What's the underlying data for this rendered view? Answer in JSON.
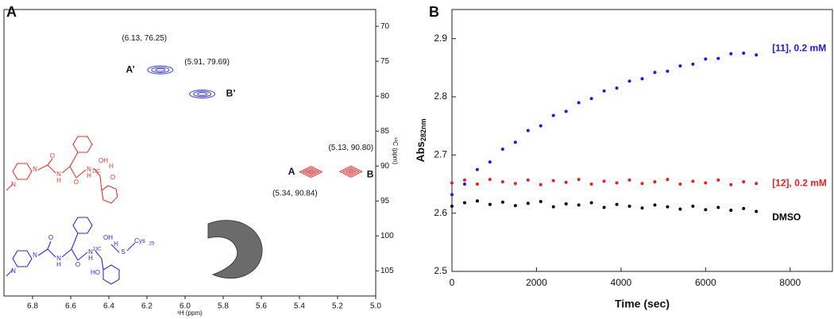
{
  "chart_data": [
    {
      "type": "contour",
      "panel_label": "A",
      "xlabel": "¹H (ppm)",
      "ylabel": "¹³C (ppm)",
      "xlim": [
        6.95,
        5.0
      ],
      "ylim": [
        67.6,
        108.6
      ],
      "xticks": [
        6.8,
        6.6,
        6.4,
        6.2,
        {
          "value": 6,
          "label": "6.0"
        },
        5.8,
        5.6,
        5.4,
        5.2,
        {
          "value": 5,
          "label": "5.0"
        }
      ],
      "yticks": [
        70,
        75,
        80,
        85,
        90,
        95,
        100,
        105
      ],
      "peaks": [
        {
          "label": "A’",
          "x": 6.13,
          "y": 76.25,
          "value_label": "(6.13, 76.25)",
          "color": "#3a3ae8"
        },
        {
          "label": "B’",
          "x": 5.91,
          "y": 79.69,
          "value_label": "(5.91, 79.69)",
          "color": "#3a3ae8"
        },
        {
          "label": "A",
          "x": 5.34,
          "y": 90.84,
          "value_label": "(5.34, 90.84)",
          "color": "#e8322f"
        },
        {
          "label": "B",
          "x": 5.13,
          "y": 90.8,
          "value_label": "(5.13, 90.80)",
          "color": "#e8322f"
        }
      ],
      "structures": [
        {
          "color": "#e8322f",
          "labels": [
            "N",
            "N",
            "O",
            "N",
            "H",
            "O",
            "N",
            "H",
            "13C",
            "OH",
            "H",
            "O"
          ]
        },
        {
          "color": "#2a2ae0",
          "labels": [
            "N",
            "N",
            "O",
            "N",
            "H",
            "O",
            "N",
            "H",
            "13C",
            "OH",
            "H",
            "S",
            "Cys",
            "25",
            "HO"
          ]
        }
      ]
    },
    {
      "type": "scatter",
      "panel_label": "B",
      "xlabel": "Time (sec)",
      "ylabel": "Abs",
      "ylabel_sub": "282nm",
      "xlim": [
        0,
        9000
      ],
      "ylim": [
        2.5,
        2.95
      ],
      "xticks": [
        0,
        2000,
        4000,
        6000,
        8000
      ],
      "yticks": [
        2.5,
        2.6,
        2.7,
        2.8,
        2.9
      ],
      "x": [
        0,
        300,
        600,
        900,
        1200,
        1500,
        1800,
        2100,
        2400,
        2700,
        3000,
        3300,
        3600,
        3900,
        4200,
        4500,
        4800,
        5100,
        5400,
        5700,
        6000,
        6300,
        6600,
        6900,
        7200
      ],
      "series": [
        {
          "name": "[11],  0.2 mM",
          "color": "#1a1ae6",
          "values": [
            2.632,
            2.65,
            2.675,
            2.688,
            2.71,
            2.722,
            2.742,
            2.75,
            2.768,
            2.775,
            2.79,
            2.797,
            2.81,
            2.815,
            2.827,
            2.831,
            2.842,
            2.844,
            2.853,
            2.856,
            2.865,
            2.866,
            2.874,
            2.875,
            2.872
          ]
        },
        {
          "name": "[12], 0.2 mM",
          "color": "#e81f1f",
          "values": [
            2.652,
            2.657,
            2.65,
            2.658,
            2.654,
            2.651,
            2.657,
            2.649,
            2.656,
            2.653,
            2.658,
            2.65,
            2.655,
            2.652,
            2.657,
            2.651,
            2.654,
            2.658,
            2.65,
            2.655,
            2.652,
            2.657,
            2.649,
            2.654,
            2.651
          ]
        },
        {
          "name": "DMSO",
          "color": "#000000",
          "values": [
            2.612,
            2.618,
            2.621,
            2.615,
            2.619,
            2.613,
            2.617,
            2.62,
            2.611,
            2.616,
            2.614,
            2.618,
            2.61,
            2.615,
            2.612,
            2.609,
            2.614,
            2.611,
            2.607,
            2.612,
            2.606,
            2.61,
            2.605,
            2.608,
            2.603
          ]
        }
      ]
    }
  ]
}
